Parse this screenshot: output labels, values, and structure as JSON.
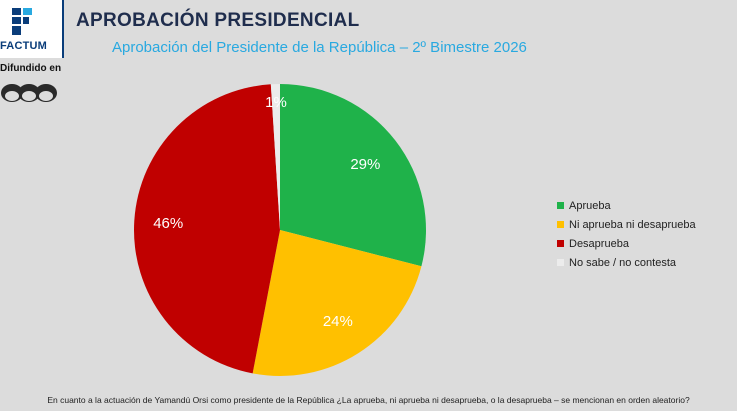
{
  "header": {
    "brand": "FACTUM",
    "title": "APROBACIÓN PRESIDENCIAL",
    "subtitle": "Aprobación del Presidente de la República – 2º Bimestre 2026",
    "difundido": "Difundido en"
  },
  "colors": {
    "brand": "#0a3d7a",
    "subtitle": "#29a9e0"
  },
  "chart_data": {
    "type": "pie",
    "labels": [
      "Aprueba",
      "Ni aprueba ni desaprueba",
      "Desaprueba",
      "No sabe / no contesta"
    ],
    "values": [
      29,
      24,
      46,
      1
    ],
    "display_labels": [
      "29%",
      "24%",
      "46%",
      "1%"
    ],
    "colors": [
      "#1fb24a",
      "#ffc000",
      "#c00000",
      "#ececec"
    ],
    "legend_position": "right"
  },
  "footer": {
    "question": "En cuanto a la actuación de Yamandú Orsi como presidente de la República ¿La aprueba, ni aprueba ni desaprueba, o la desaprueba – se mencionan en orden aleatorio?"
  }
}
